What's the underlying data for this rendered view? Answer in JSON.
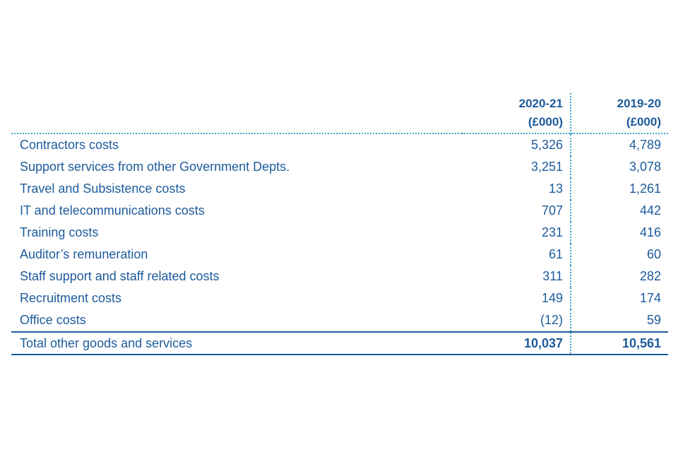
{
  "table": {
    "headers": {
      "label": "",
      "year1": "2020-21",
      "year1_unit": "(£000)",
      "year2": "2019-20",
      "year2_unit": "(£000)"
    },
    "rows": [
      {
        "label": "Contractors costs",
        "y1": "5,326",
        "y2": "4,789"
      },
      {
        "label": "Support services from other Government Depts.",
        "y1": "3,251",
        "y2": "3,078"
      },
      {
        "label": "Travel and Subsistence costs",
        "y1": "13",
        "y2": "1,261"
      },
      {
        "label": "IT and telecommunications costs",
        "y1": "707",
        "y2": "442"
      },
      {
        "label": "Training costs",
        "y1": "231",
        "y2": "416"
      },
      {
        "label": "Auditor’s remuneration",
        "y1": "61",
        "y2": "60"
      },
      {
        "label": "Staff support and staff related costs",
        "y1": "311",
        "y2": "282"
      },
      {
        "label": "Recruitment costs",
        "y1": "149",
        "y2": "174"
      },
      {
        "label": "Office costs",
        "y1": "(12)",
        "y2": "59"
      }
    ],
    "total": {
      "label": "Total other goods and services",
      "y1": "10,037",
      "y2": "10,561"
    }
  },
  "colors": {
    "text": "#1d5b9c",
    "dotted_rule": "#4aa3c8"
  }
}
